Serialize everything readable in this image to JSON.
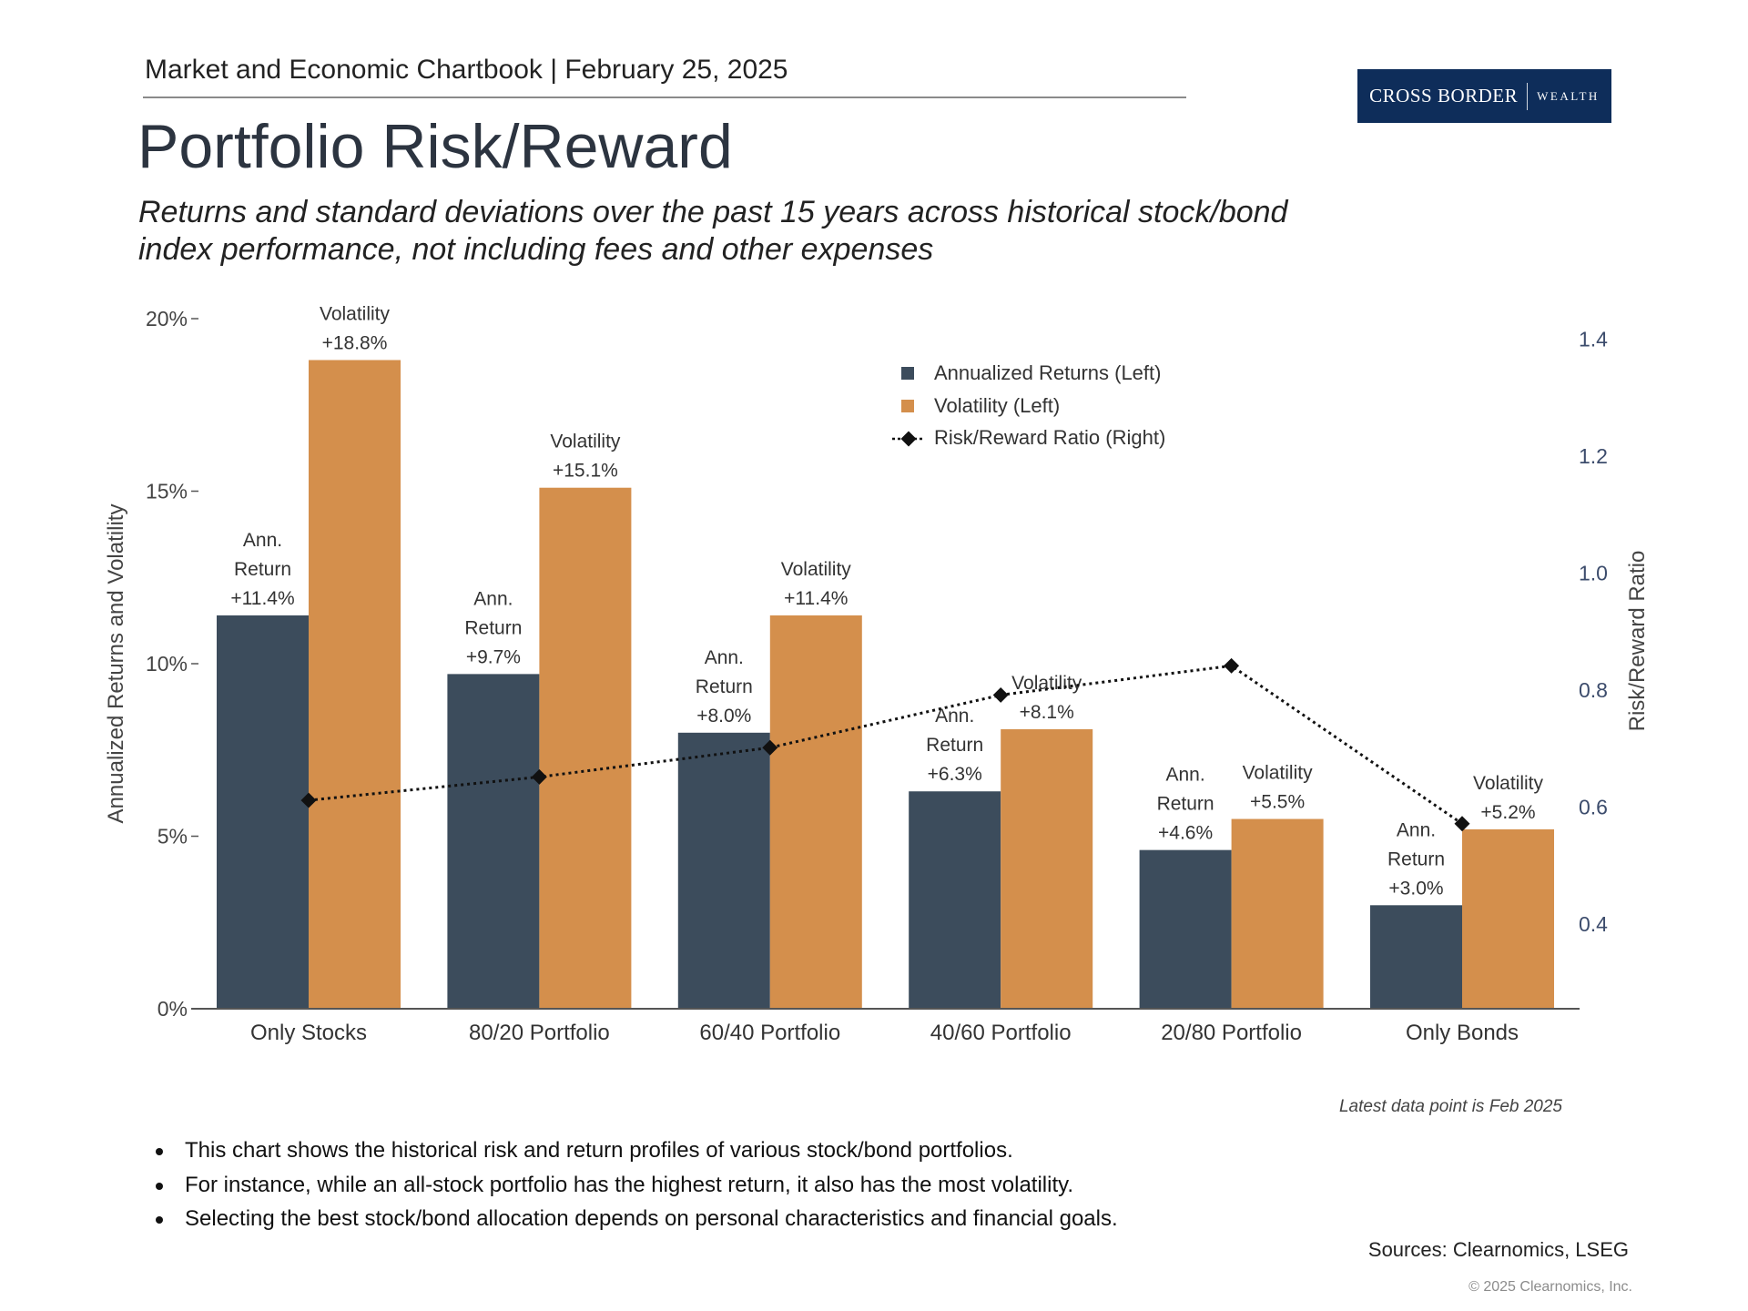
{
  "header": {
    "chartbook": "Market and Economic Chartbook | February 25, 2025",
    "logo_main": "CROSS BORDER",
    "logo_sub": "WEALTH"
  },
  "title": "Portfolio Risk/Reward",
  "subtitle": "Returns and standard deviations over the past 15 years across historical stock/bond index performance, not including fees and other expenses",
  "colors": {
    "returns": "#3c4c5c",
    "volatility": "#d48f4c",
    "ratio": "#111111",
    "logo_bg": "#0e2d5a"
  },
  "chart_data": {
    "type": "bar",
    "categories": [
      "Only Stocks",
      "80/20 Portfolio",
      "60/40 Portfolio",
      "40/60 Portfolio",
      "20/80 Portfolio",
      "Only Bonds"
    ],
    "series": [
      {
        "name": "Annualized Returns (Left)",
        "axis": "left",
        "values": [
          11.4,
          9.7,
          8.0,
          6.3,
          4.6,
          3.0
        ],
        "labels": [
          "+11.4%",
          "+9.7%",
          "+8.0%",
          "+6.3%",
          "+4.6%",
          "+3.0%"
        ],
        "label_prefix": [
          "Ann.",
          "Return"
        ]
      },
      {
        "name": "Volatility (Left)",
        "axis": "left",
        "values": [
          18.8,
          15.1,
          11.4,
          8.1,
          5.5,
          5.2
        ],
        "labels": [
          "+18.8%",
          "+15.1%",
          "+11.4%",
          "+8.1%",
          "+5.5%",
          "+5.2%"
        ],
        "label_prefix": [
          "Volatility"
        ]
      },
      {
        "name": "Risk/Reward Ratio (Right)",
        "type": "line",
        "axis": "right",
        "values": [
          0.61,
          0.65,
          0.7,
          0.79,
          0.84,
          0.57
        ]
      }
    ],
    "ylabel": "Annualized Returns and Volatility",
    "y2label": "Risk/Reward Ratio",
    "ylim": [
      0,
      20
    ],
    "yticks": [
      0,
      5,
      10,
      15,
      20
    ],
    "ytick_labels": [
      "0%",
      "5%",
      "10%",
      "15%",
      "20%"
    ],
    "y2lim": [
      0.25,
      1.425
    ],
    "y2ticks": [
      0.4,
      0.6,
      0.8,
      1.0,
      1.2,
      1.4
    ],
    "y2tick_labels": [
      "0.4",
      "0.6",
      "0.8",
      "1.0",
      "1.2",
      "1.4"
    ],
    "legend": "top-center",
    "note": "Latest data point is Feb 2025"
  },
  "bullets": [
    "This chart shows the historical risk and return profiles of various stock/bond portfolios.",
    "For instance, while an all-stock portfolio has the highest return, it also has the most volatility.",
    "Selecting the best stock/bond allocation depends on personal characteristics and financial goals."
  ],
  "sources": "Sources: Clearnomics, LSEG",
  "copyright": "© 2025 Clearnomics, Inc."
}
